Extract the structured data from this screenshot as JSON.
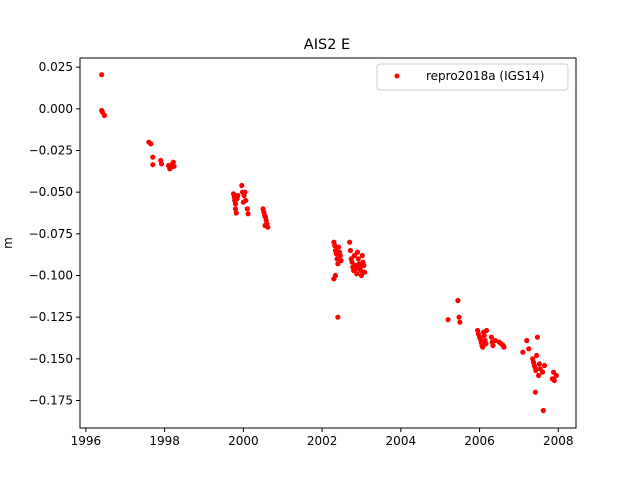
{
  "chart_data": {
    "type": "scatter",
    "title": "AIS2 E",
    "xlabel": "",
    "ylabel": "m",
    "xlim": [
      1995.85,
      2008.45
    ],
    "ylim": [
      -0.1915,
      0.0305
    ],
    "x_ticks": [
      1996,
      1998,
      2000,
      2002,
      2004,
      2006,
      2008
    ],
    "x_tick_labels": [
      "1996",
      "1998",
      "2000",
      "2002",
      "2004",
      "2006",
      "2008"
    ],
    "y_ticks": [
      0.025,
      0.0,
      -0.025,
      -0.05,
      -0.075,
      -0.1,
      -0.125,
      -0.15,
      -0.175
    ],
    "y_tick_labels": [
      "0.025",
      "0.000",
      "−0.025",
      "−0.050",
      "−0.075",
      "−0.100",
      "−0.125",
      "−0.150",
      "−0.175"
    ],
    "grid": false,
    "legend_position": "top-right",
    "series": [
      {
        "name": "repro2018a (IGS14)",
        "color": "#ff0000",
        "marker": "circle",
        "points": [
          [
            1996.4,
            0.0205
          ],
          [
            1996.4,
            -0.001
          ],
          [
            1996.42,
            -0.002
          ],
          [
            1996.47,
            -0.004
          ],
          [
            1997.6,
            -0.02
          ],
          [
            1997.65,
            -0.021
          ],
          [
            1997.7,
            -0.029
          ],
          [
            1997.7,
            -0.0335
          ],
          [
            1997.9,
            -0.031
          ],
          [
            1997.92,
            -0.033
          ],
          [
            1998.1,
            -0.034
          ],
          [
            1998.13,
            -0.036
          ],
          [
            1998.16,
            -0.035
          ],
          [
            1998.2,
            -0.033
          ],
          [
            1998.22,
            -0.032
          ],
          [
            1998.24,
            -0.0345
          ],
          [
            1999.75,
            -0.051
          ],
          [
            1999.77,
            -0.053
          ],
          [
            1999.78,
            -0.055
          ],
          [
            1999.8,
            -0.057
          ],
          [
            1999.8,
            -0.06
          ],
          [
            1999.82,
            -0.0625
          ],
          [
            1999.84,
            -0.054
          ],
          [
            1999.86,
            -0.052
          ],
          [
            1999.96,
            -0.046
          ],
          [
            1999.98,
            -0.05
          ],
          [
            2000.02,
            -0.052
          ],
          [
            2000.04,
            -0.05
          ],
          [
            2000.0,
            -0.056
          ],
          [
            2000.06,
            -0.055
          ],
          [
            2000.1,
            -0.06
          ],
          [
            2000.12,
            -0.063
          ],
          [
            2000.5,
            -0.06
          ],
          [
            2000.52,
            -0.062
          ],
          [
            2000.54,
            -0.064
          ],
          [
            2000.56,
            -0.065
          ],
          [
            2000.58,
            -0.067
          ],
          [
            2000.6,
            -0.069
          ],
          [
            2000.62,
            -0.071
          ],
          [
            2000.55,
            -0.07
          ],
          [
            2002.3,
            -0.08
          ],
          [
            2002.32,
            -0.082
          ],
          [
            2002.34,
            -0.085
          ],
          [
            2002.36,
            -0.087
          ],
          [
            2002.38,
            -0.09
          ],
          [
            2002.4,
            -0.093
          ],
          [
            2002.42,
            -0.083
          ],
          [
            2002.44,
            -0.086
          ],
          [
            2002.46,
            -0.088
          ],
          [
            2002.48,
            -0.091
          ],
          [
            2002.34,
            -0.1
          ],
          [
            2002.3,
            -0.102
          ],
          [
            2002.4,
            -0.125
          ],
          [
            2002.7,
            -0.08
          ],
          [
            2002.72,
            -0.085
          ],
          [
            2002.74,
            -0.09
          ],
          [
            2002.76,
            -0.092
          ],
          [
            2002.78,
            -0.095
          ],
          [
            2002.8,
            -0.097
          ],
          [
            2002.82,
            -0.088
          ],
          [
            2002.84,
            -0.094
          ],
          [
            2002.86,
            -0.096
          ],
          [
            2002.88,
            -0.099
          ],
          [
            2002.9,
            -0.086
          ],
          [
            2002.92,
            -0.09
          ],
          [
            2002.94,
            -0.093
          ],
          [
            2002.96,
            -0.095
          ],
          [
            2002.98,
            -0.097
          ],
          [
            2003.0,
            -0.1
          ],
          [
            2003.02,
            -0.088
          ],
          [
            2003.04,
            -0.092
          ],
          [
            2003.06,
            -0.094
          ],
          [
            2003.08,
            -0.098
          ],
          [
            2005.2,
            -0.1265
          ],
          [
            2005.45,
            -0.115
          ],
          [
            2005.48,
            -0.125
          ],
          [
            2005.5,
            -0.128
          ],
          [
            2005.95,
            -0.133
          ],
          [
            2005.97,
            -0.135
          ],
          [
            2006.0,
            -0.137
          ],
          [
            2006.02,
            -0.138
          ],
          [
            2006.04,
            -0.14
          ],
          [
            2006.06,
            -0.142
          ],
          [
            2006.08,
            -0.143
          ],
          [
            2006.1,
            -0.134
          ],
          [
            2006.12,
            -0.136
          ],
          [
            2006.14,
            -0.139
          ],
          [
            2006.16,
            -0.141
          ],
          [
            2006.18,
            -0.133
          ],
          [
            2006.3,
            -0.137
          ],
          [
            2006.32,
            -0.14
          ],
          [
            2006.34,
            -0.142
          ],
          [
            2006.4,
            -0.139
          ],
          [
            2006.5,
            -0.14
          ],
          [
            2006.55,
            -0.141
          ],
          [
            2006.6,
            -0.142
          ],
          [
            2006.62,
            -0.143
          ],
          [
            2007.1,
            -0.146
          ],
          [
            2007.2,
            -0.139
          ],
          [
            2007.25,
            -0.144
          ],
          [
            2007.35,
            -0.15
          ],
          [
            2007.37,
            -0.152
          ],
          [
            2007.39,
            -0.154
          ],
          [
            2007.41,
            -0.155
          ],
          [
            2007.43,
            -0.157
          ],
          [
            2007.45,
            -0.148
          ],
          [
            2007.47,
            -0.137
          ],
          [
            2007.5,
            -0.16
          ],
          [
            2007.52,
            -0.153
          ],
          [
            2007.54,
            -0.156
          ],
          [
            2007.42,
            -0.17
          ],
          [
            2007.6,
            -0.158
          ],
          [
            2007.65,
            -0.154
          ],
          [
            2007.62,
            -0.181
          ],
          [
            2007.85,
            -0.162
          ],
          [
            2007.88,
            -0.158
          ],
          [
            2007.9,
            -0.163
          ],
          [
            2007.95,
            -0.16
          ]
        ]
      }
    ]
  }
}
